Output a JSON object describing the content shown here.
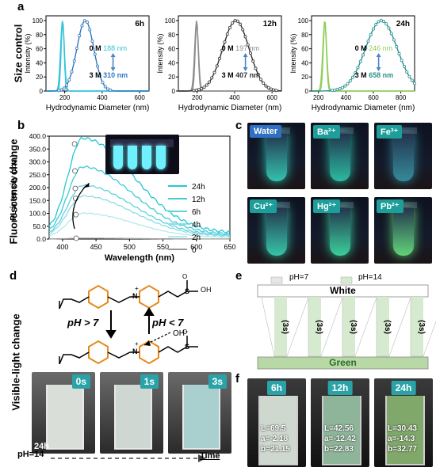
{
  "panel_labels": {
    "a": "a",
    "b": "b",
    "c": "c",
    "d": "d",
    "e": "e",
    "f": "f"
  },
  "side_labels": {
    "size": "Size control",
    "fluor": "Fluorescence change",
    "visible": "Visible-light change"
  },
  "panel_a": {
    "xlabel": "Hydrodynamic Diameter (nm)",
    "ylabel": "Intensity (%)",
    "charts": [
      {
        "title": "6h",
        "zero_label": "0 M",
        "zero_value": "188 nm",
        "three_label": "3 M",
        "three_value": "310 nm",
        "zero_color": "#33c3d6",
        "three_color": "#2f78c0",
        "xticks": [
          "200",
          "400",
          "600"
        ],
        "yticks": [
          "0",
          "20",
          "40",
          "60",
          "80",
          "100"
        ],
        "xlim": [
          100,
          650
        ],
        "ylim": [
          0,
          100
        ],
        "peak0": 188,
        "width0": 10,
        "peak3": 310,
        "width3": 45
      },
      {
        "title": "12h",
        "zero_label": "0 M",
        "zero_value": "197 nm",
        "three_label": "3 M",
        "three_value": "407 nm",
        "zero_color": "#8c8c8c",
        "three_color": "#333333",
        "xticks": [
          "200",
          "400",
          "600"
        ],
        "yticks": [
          "0",
          "20",
          "40",
          "60",
          "80",
          "100"
        ],
        "xlim": [
          100,
          650
        ],
        "ylim": [
          0,
          100
        ],
        "peak0": 197,
        "width0": 10,
        "peak3": 407,
        "width3": 70
      },
      {
        "title": "24h",
        "zero_label": "0 M",
        "zero_value": "246 nm",
        "three_label": "3 M",
        "three_value": "658 nm",
        "zero_color": "#8fce5a",
        "three_color": "#2a8f8f",
        "xticks": [
          "200",
          "400",
          "600",
          "800"
        ],
        "yticks": [
          "0",
          "20",
          "40",
          "60",
          "80",
          "100"
        ],
        "xlim": [
          150,
          900
        ],
        "ylim": [
          0,
          100
        ],
        "peak0": 246,
        "width0": 14,
        "peak3": 658,
        "width3": 115
      }
    ]
  },
  "chart_data": {
    "type": "line",
    "xlabel": "Wavelength (nm)",
    "ylabel": "PL intensity (a.u.)",
    "xlim": [
      380,
      650
    ],
    "ylim": [
      0,
      400
    ],
    "xticks": [
      "400",
      "450",
      "500",
      "550",
      "600",
      "650"
    ],
    "yticks": [
      "0.0",
      "50.0",
      "100.0",
      "150.0",
      "200.0",
      "250.0",
      "300.0",
      "350.0",
      "400.0"
    ],
    "series": [
      {
        "name": "24h",
        "peak": 370,
        "color": "#22c8d4"
      },
      {
        "name": "12h",
        "peak": 265,
        "color": "#3fcad6"
      },
      {
        "name": "6h",
        "peak": 197,
        "color": "#5fd2dc"
      },
      {
        "name": "4h",
        "peak": 158,
        "color": "#8cdde5"
      },
      {
        "name": "2h",
        "peak": 95,
        "color": "#b4e8ee"
      },
      {
        "name": "0",
        "peak": 3,
        "color": "#999999"
      }
    ]
  },
  "panel_c": {
    "tiles": [
      {
        "label": "Water",
        "tag_bg": "#2f6fc4",
        "glow": "#39e0c8"
      },
      {
        "label": "Ba²⁺",
        "tag_bg": "#1d9e9a",
        "glow": "#2fd7b8"
      },
      {
        "label": "Fe³⁺",
        "tag_bg": "#1d9e9a",
        "glow": "#3a9fb0"
      },
      {
        "label": "Cu²⁺",
        "tag_bg": "#1d9e9a",
        "glow": "#3de3c0"
      },
      {
        "label": "Hg²⁺",
        "tag_bg": "#1d9e9a",
        "glow": "#42f0b0"
      },
      {
        "label": "Pb²⁺",
        "tag_bg": "#1d9e9a",
        "glow": "#6ff58a"
      }
    ]
  },
  "panel_d": {
    "ph_gt": "pH > 7",
    "ph_lt": "pH < 7",
    "oh": "OH⁻",
    "so3h": "OH",
    "photos": [
      "0s",
      "1s",
      "3s"
    ],
    "photo_corner": "24h",
    "ph14": "pH=14",
    "time": "Time"
  },
  "panel_e": {
    "legend_ph7": "pH=7",
    "legend_ph14": "pH=14",
    "white": "White",
    "green": "Green",
    "interval": "(3s)"
  },
  "panel_f": {
    "cuvettes": [
      {
        "title": "6h",
        "L": "L=69.5",
        "a": "a=-2.18",
        "b": "b=21.15",
        "color": "#cfd8cf"
      },
      {
        "title": "12h",
        "L": "L=42.56",
        "a": "a=-12.42",
        "b": "b=22.83",
        "color": "#8eb59a"
      },
      {
        "title": "24h",
        "L": "L=30.43",
        "a": "a=-14.3",
        "b": "b=32.77",
        "color": "#7fa86a"
      }
    ]
  }
}
